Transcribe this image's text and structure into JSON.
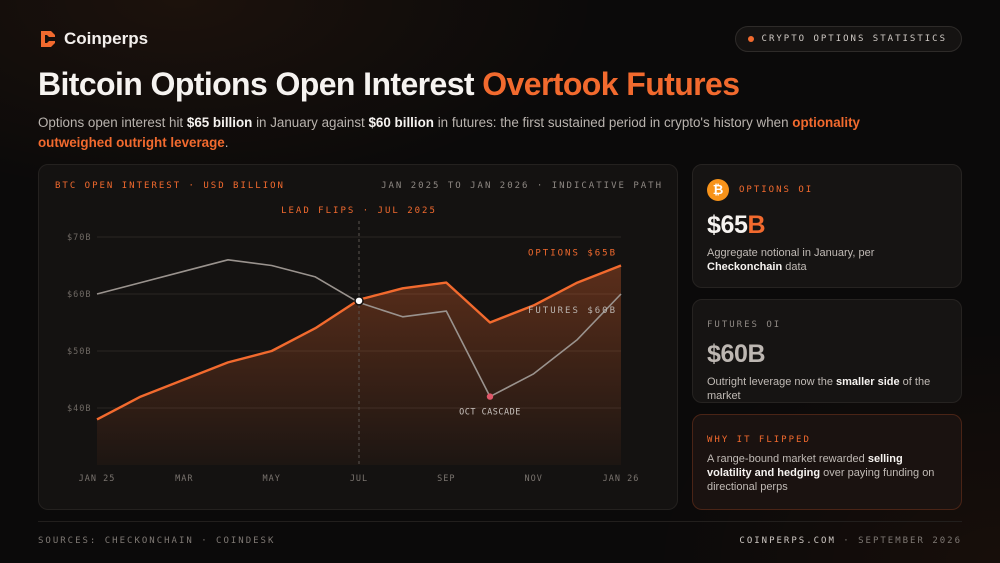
{
  "brand": {
    "name": "Coinperps"
  },
  "pill": {
    "label": "CRYPTO OPTIONS STATISTICS"
  },
  "headline": {
    "main": "Bitcoin Options Open Interest",
    "accent": "Overtook Futures"
  },
  "subtitle": {
    "t1": "Options open interest hit ",
    "b1": "$65 billion",
    "t2": " in January against ",
    "b2": "$60 billion",
    "t3": " in futures: the first sustained period in crypto's history when ",
    "hl": "optionality outweighed outright leverage",
    "t4": "."
  },
  "chart_data": {
    "type": "line",
    "title": "BTC OPEN INTEREST · USD BILLION",
    "subtitle": "JAN 2025 TO JAN 2026 · INDICATIVE PATH",
    "x": [
      0,
      1,
      2,
      3,
      4,
      5,
      6,
      7,
      8,
      9,
      10,
      11,
      12
    ],
    "x_ticks": [
      {
        "x": 0,
        "label": "JAN 25"
      },
      {
        "x": 2,
        "label": "MAR"
      },
      {
        "x": 4,
        "label": "MAY"
      },
      {
        "x": 6,
        "label": "JUL"
      },
      {
        "x": 8,
        "label": "SEP"
      },
      {
        "x": 10,
        "label": "NOV"
      },
      {
        "x": 12,
        "label": "JAN 26"
      }
    ],
    "y_ticks": [
      {
        "v": 40,
        "label": "$40B"
      },
      {
        "v": 50,
        "label": "$50B"
      },
      {
        "v": 60,
        "label": "$60B"
      },
      {
        "v": 70,
        "label": "$70B"
      }
    ],
    "ylim": [
      30,
      70
    ],
    "xlim": [
      0,
      12
    ],
    "grid": true,
    "series": [
      {
        "name": "OPTIONS $65B",
        "color": "#f26a2e",
        "values": [
          38,
          42,
          45,
          48,
          50,
          54,
          59,
          61,
          62,
          55,
          58,
          62,
          65
        ]
      },
      {
        "name": "FUTURES $60B",
        "color": "#9a938e",
        "values": [
          60,
          62,
          64,
          66,
          65,
          63,
          58.5,
          56,
          57,
          42,
          46,
          52,
          60
        ]
      }
    ],
    "annotations": [
      {
        "label": "LEAD FLIPS · JUL 2025",
        "x": 6,
        "y": 58.8,
        "kind": "crossover"
      },
      {
        "label": "OCT CASCADE",
        "x": 9,
        "y": 42,
        "kind": "point"
      }
    ]
  },
  "cards": {
    "options": {
      "label": "OPTIONS OI",
      "value_num": "$65",
      "value_unit": "B",
      "desc_pre": "Aggregate notional in January, per ",
      "desc_bold": "Checkonchain",
      "desc_post": " data"
    },
    "futures": {
      "label": "FUTURES OI",
      "value_num": "$60",
      "value_unit": "B",
      "desc_pre": "Outright leverage now the ",
      "desc_bold": "smaller side",
      "desc_post": " of the market"
    },
    "why": {
      "label": "WHY IT FLIPPED",
      "desc_pre": "A range-bound market rewarded ",
      "desc_bold": "selling volatility and hedging",
      "desc_post": " over paying funding on directional perps"
    }
  },
  "footer": {
    "sources": "SOURCES: CHECKONCHAIN · COINDESK",
    "site": "COINPERPS.COM",
    "date": " · SEPTEMBER 2026"
  },
  "colors": {
    "accent": "#f26a2e",
    "futures": "#9a938e",
    "bitcoin": "#f7931a",
    "cascade": "#e0586a"
  }
}
